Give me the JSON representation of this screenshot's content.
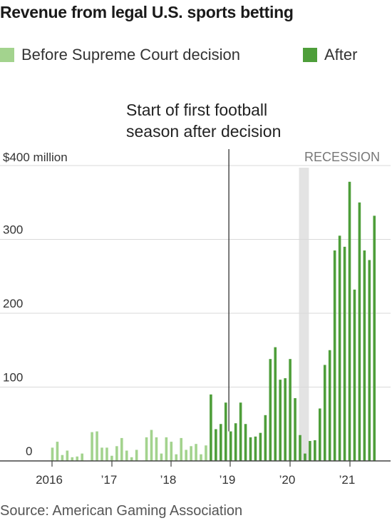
{
  "title": "Revenue from legal U.S. sports betting",
  "legend": {
    "before": {
      "label": "Before Supreme Court decision",
      "color": "#a3d38e"
    },
    "after": {
      "label": "After",
      "color": "#4e9e3a"
    }
  },
  "annotation": {
    "line1": "Start of first football",
    "line2": "season after decision"
  },
  "recession_label": "RECESSION",
  "source": "Source: American Gaming Association",
  "chart_data": {
    "type": "bar",
    "title": "Revenue from legal U.S. sports betting",
    "ylabel": "$400 million",
    "ylim": [
      0,
      400
    ],
    "y_ticks": [
      {
        "value": 400,
        "label": "$400 million"
      },
      {
        "value": 300,
        "label": "300"
      },
      {
        "value": 200,
        "label": "200"
      },
      {
        "value": 100,
        "label": "100"
      },
      {
        "value": 0,
        "label": "0"
      }
    ],
    "x_ticks": [
      "2016",
      "’17",
      "’18",
      "’19",
      "’20",
      "’21"
    ],
    "decision_bar_index": 32,
    "football_start_index": 36,
    "recession_index_range": [
      50,
      52
    ],
    "series": [
      {
        "name": "Before Supreme Court decision",
        "values": [
          18,
          26,
          8,
          14,
          5,
          6,
          10,
          0,
          39,
          40,
          18,
          18,
          7,
          20,
          31,
          14,
          5,
          15,
          0,
          32,
          42,
          32,
          10,
          32,
          26,
          9,
          31,
          15,
          20,
          23,
          9,
          21
        ]
      },
      {
        "name": "After",
        "values": [
          90,
          43,
          50,
          79,
          40,
          51,
          79,
          50,
          32,
          33,
          38,
          62,
          138,
          154,
          110,
          112,
          138,
          85,
          35,
          10,
          27,
          28,
          71,
          130,
          150,
          285,
          305,
          290,
          378,
          232,
          350,
          285,
          272,
          332
        ]
      }
    ]
  }
}
